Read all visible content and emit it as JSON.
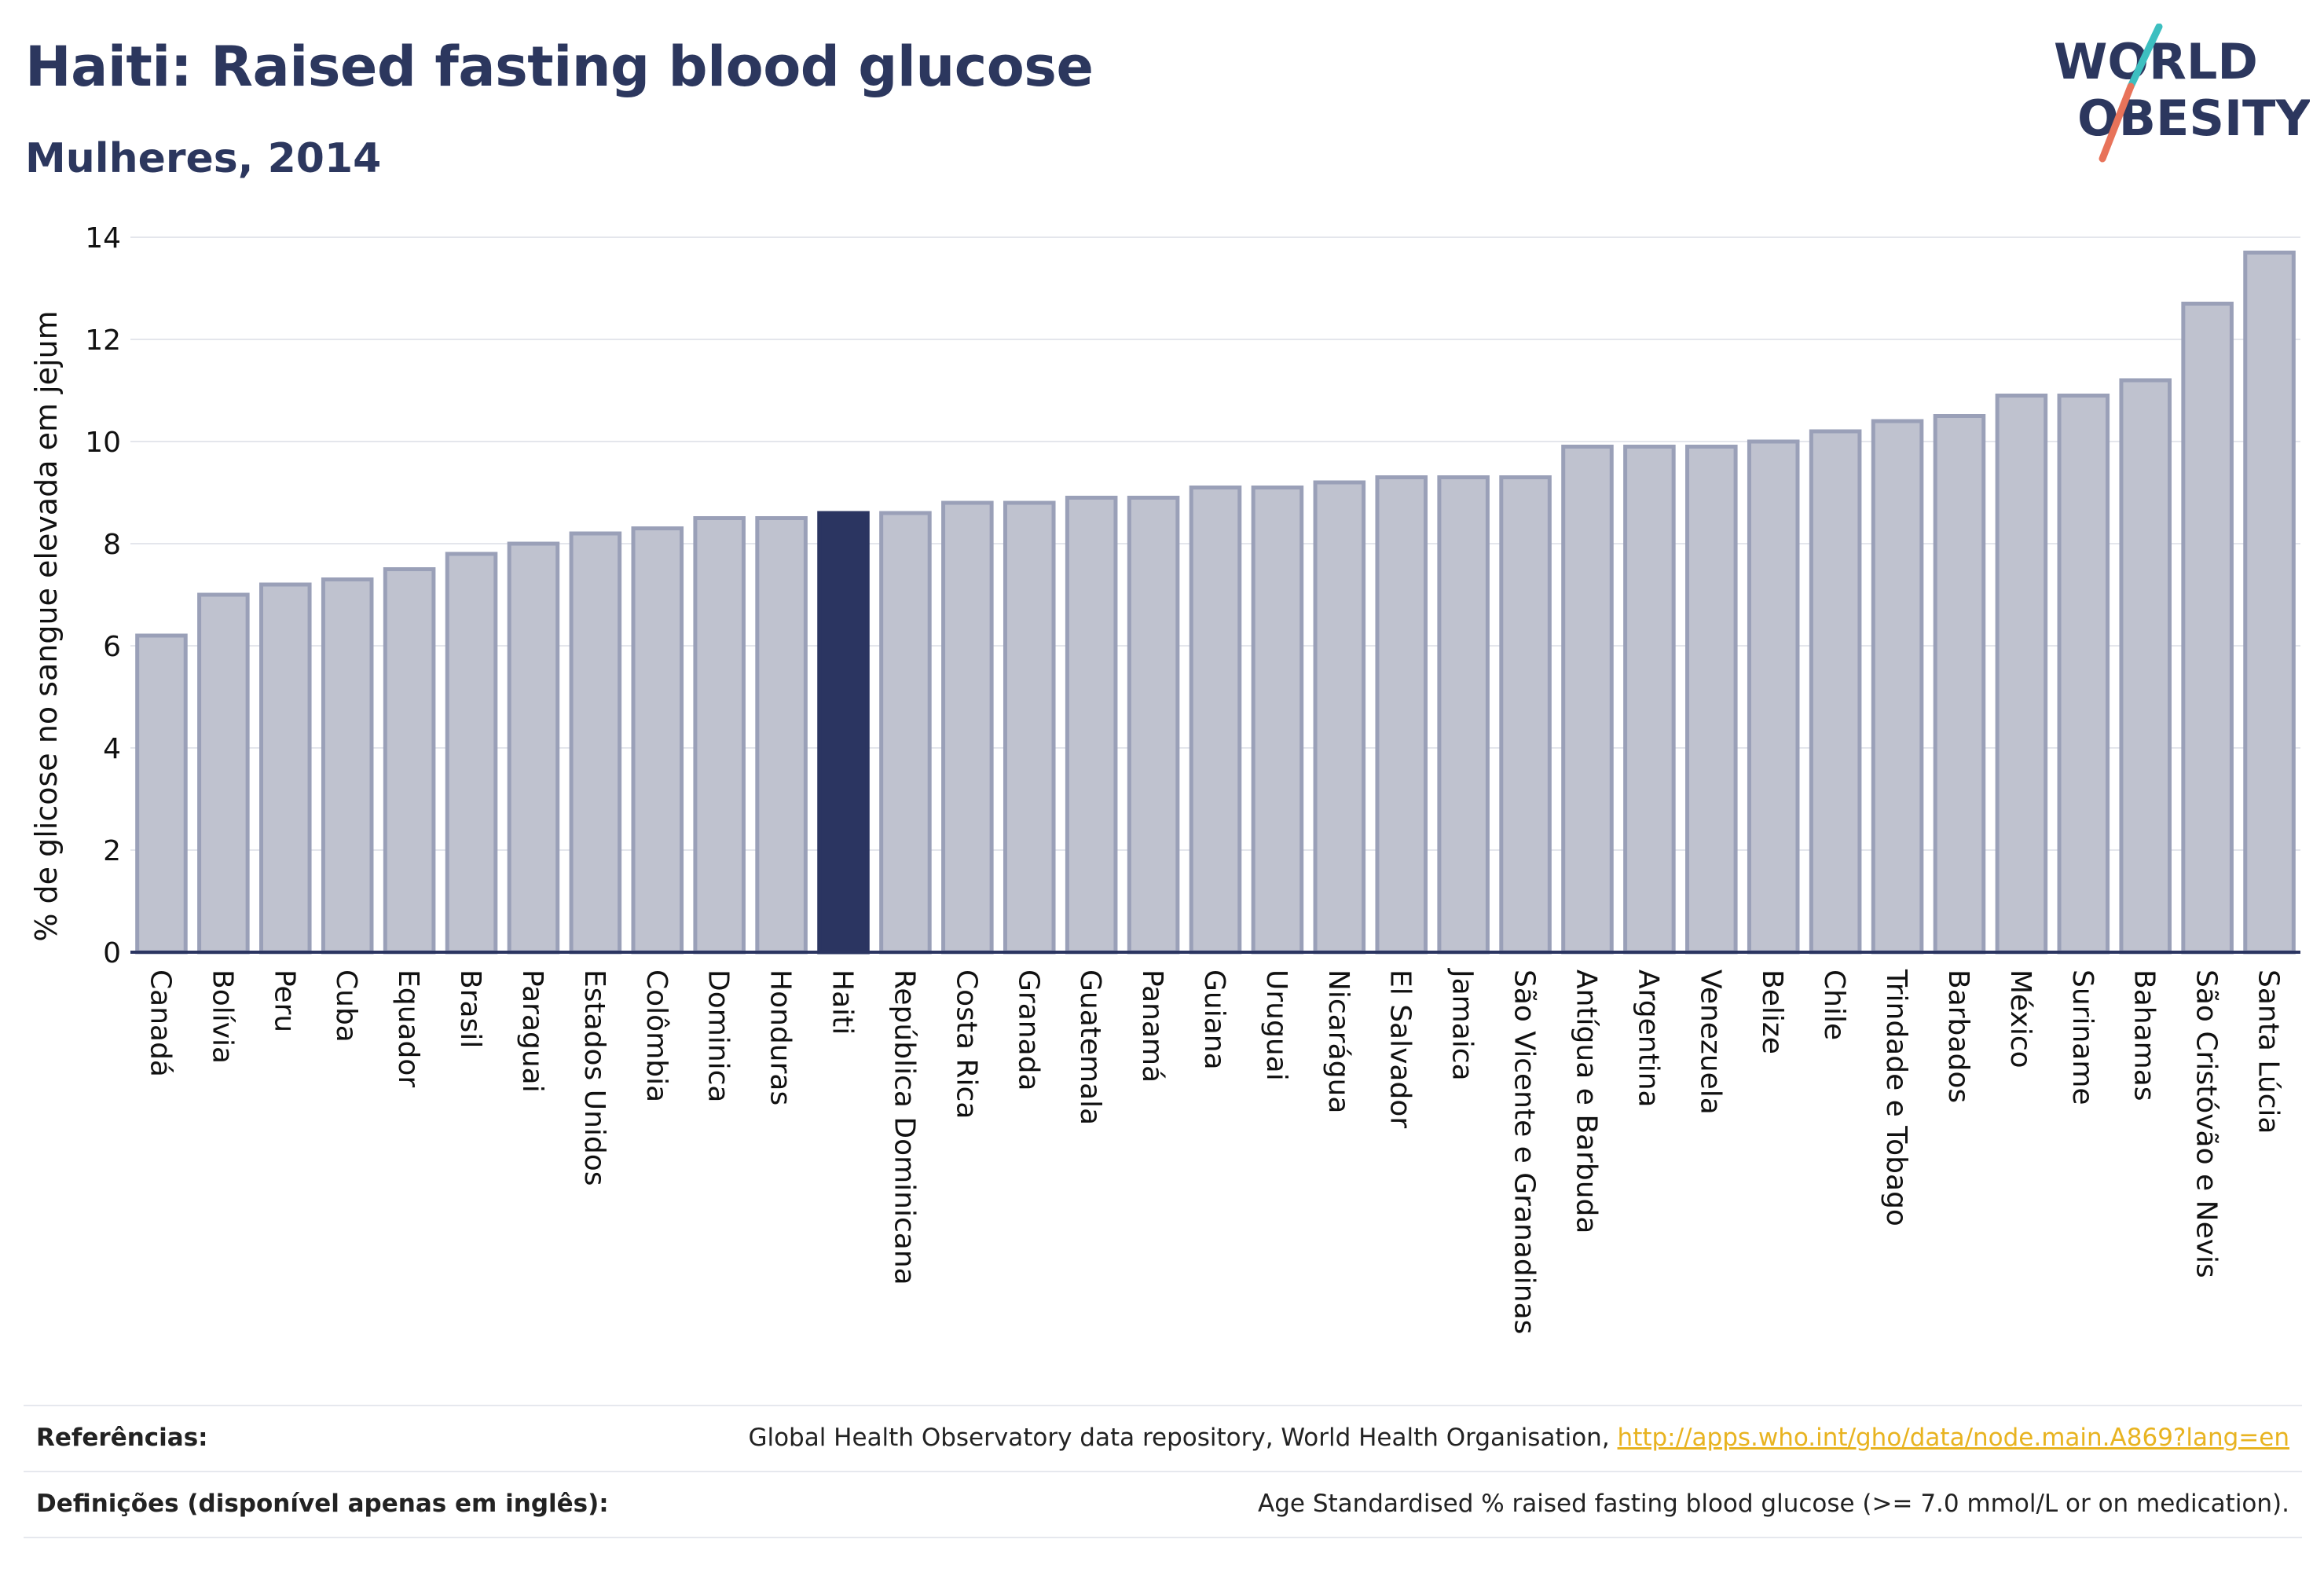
{
  "header": {
    "title": "Haiti: Raised fasting blood glucose",
    "subtitle": "Mulheres, 2014"
  },
  "logo": {
    "line1": "WORLD",
    "line2": "OBESITY",
    "text_color": "#2c375e",
    "slash_colors": [
      "#3dbfc0",
      "#e8735a"
    ]
  },
  "colors": {
    "bar": "#bfc2cf",
    "bar_border": "#9aa0b8",
    "highlight": "#2b3561",
    "axis": "#2b3561",
    "grid": "#e4e6ec"
  },
  "chart_data": {
    "type": "bar",
    "ylabel": "% de glicose no sangue elevada em jejum",
    "ylim": [
      0,
      14
    ],
    "yticks": [
      0,
      2,
      4,
      6,
      8,
      10,
      12,
      14
    ],
    "grid": true,
    "highlight": "Haiti",
    "categories": [
      "Canadá",
      "Bolívia",
      "Peru",
      "Cuba",
      "Equador",
      "Brasil",
      "Paraguai",
      "Estados Unidos",
      "Colômbia",
      "Dominica",
      "Honduras",
      "Haiti",
      "República Dominicana",
      "Costa Rica",
      "Granada",
      "Guatemala",
      "Panamá",
      "Guiana",
      "Uruguai",
      "Nicarágua",
      "El Salvador",
      "Jamaica",
      "São Vicente e Granadinas",
      "Antígua e Barbuda",
      "Argentina",
      "Venezuela",
      "Belize",
      "Chile",
      "Trindade e Tobago",
      "Barbados",
      "México",
      "Suriname",
      "Bahamas",
      "São Cristóvão e Nevis",
      "Santa Lúcia"
    ],
    "values": [
      6.2,
      7.0,
      7.2,
      7.3,
      7.5,
      7.8,
      8.0,
      8.2,
      8.3,
      8.5,
      8.5,
      8.6,
      8.6,
      8.8,
      8.8,
      8.9,
      8.9,
      9.1,
      9.1,
      9.2,
      9.3,
      9.3,
      9.3,
      9.9,
      9.9,
      9.9,
      10.0,
      10.2,
      10.4,
      10.5,
      10.9,
      10.9,
      11.2,
      12.7,
      13.7
    ]
  },
  "footer": {
    "references_label": "Referências:",
    "references_text": "Global Health Observatory data repository, World Health Organisation, ",
    "references_link": "http://apps.who.int/gho/data/node.main.A869?lang=en",
    "definitions_label": "Definições (disponível apenas em inglês):",
    "definitions_text": "Age Standardised % raised fasting blood glucose (>= 7.0 mmol/L or on medication)."
  }
}
